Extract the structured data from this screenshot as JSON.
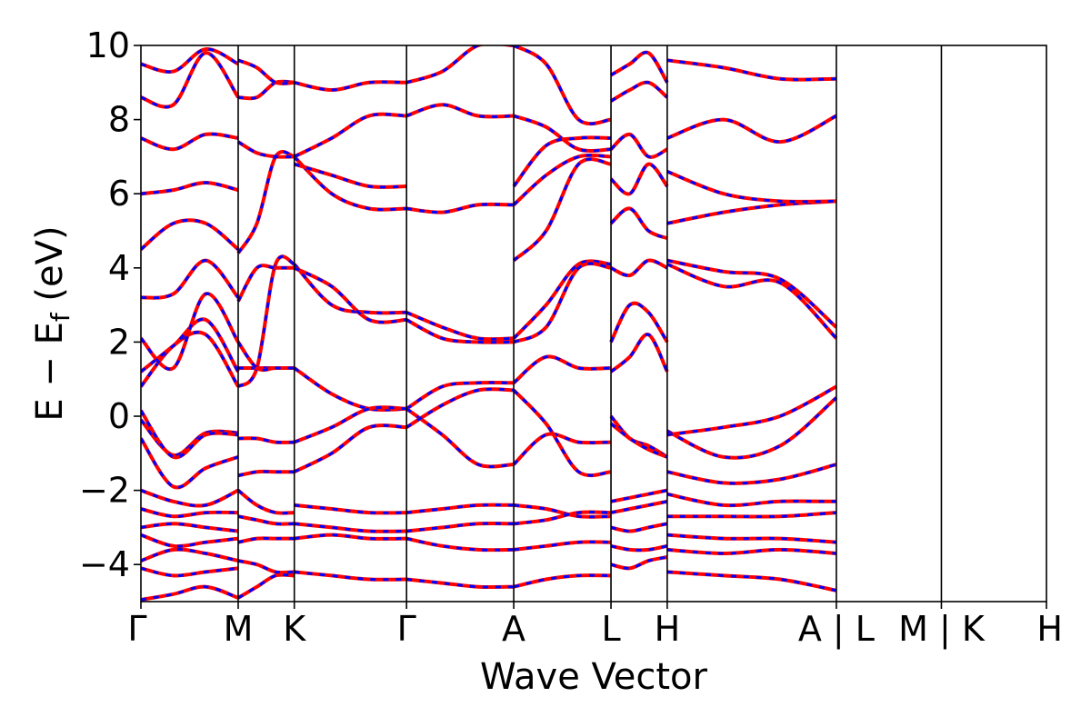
{
  "chart_data": {
    "type": "line",
    "xlabel": "Wave Vector",
    "ylabel": "E − E",
    "ylabel_sub": "f",
    "ylabel_unit": " (eV)",
    "ylim": [
      -5,
      10
    ],
    "yticks": [
      {
        "value": 10,
        "label": "10"
      },
      {
        "value": 8,
        "label": "8"
      },
      {
        "value": 6,
        "label": "6"
      },
      {
        "value": 4,
        "label": "4"
      },
      {
        "value": 2,
        "label": "2"
      },
      {
        "value": 0,
        "label": "0"
      },
      {
        "value": -2,
        "label": "−2"
      },
      {
        "value": -4,
        "label": "−4"
      }
    ],
    "k_path": [
      {
        "k": 0.0,
        "label": "Γ"
      },
      {
        "k": 1.0,
        "label": "M"
      },
      {
        "k": 1.577,
        "label": "K"
      },
      {
        "k": 2.731,
        "label": "Γ"
      },
      {
        "k": 3.833,
        "label": "A"
      },
      {
        "k": 4.833,
        "label": "L"
      },
      {
        "k": 5.411,
        "label": "H"
      },
      {
        "k": 7.15,
        "label": "A | L"
      },
      {
        "k": 8.23,
        "label": "M | K"
      },
      {
        "k": 9.31,
        "label": "H"
      }
    ],
    "series": [
      {
        "name": "",
        "color": "#ff0000",
        "style": "solid"
      },
      {
        "name": "",
        "color": "#0000ff",
        "style": "dashed"
      }
    ],
    "bands_segments": [
      [
        [
          -0.1,
          -1.05,
          -0.45,
          -0.45
        ],
        [
          0.15,
          -1.1,
          -0.5,
          -0.5
        ],
        [
          0.8,
          1.9,
          2.2,
          0.8
        ],
        [
          1.2,
          1.9,
          2.6,
          1.2
        ],
        [
          2.1,
          1.3,
          3.3,
          2.0
        ],
        [
          3.2,
          3.3,
          4.2,
          3.2
        ],
        [
          4.5,
          5.2,
          5.2,
          4.5
        ],
        [
          6.0,
          6.1,
          6.3,
          6.1
        ],
        [
          7.5,
          7.2,
          7.6,
          7.5
        ],
        [
          8.6,
          8.4,
          9.8,
          8.6
        ],
        [
          9.5,
          9.3,
          9.9,
          9.5
        ],
        [
          -0.6,
          -1.9,
          -1.4,
          -1.1
        ],
        [
          -2.0,
          -2.3,
          -2.4,
          -2.0
        ],
        [
          -2.5,
          -2.7,
          -2.6,
          -2.6
        ],
        [
          -3.0,
          -2.9,
          -3.0,
          -3.1
        ],
        [
          -3.2,
          -3.5,
          -3.4,
          -3.3
        ],
        [
          -3.9,
          -3.6,
          -3.7,
          -3.9
        ],
        [
          -4.1,
          -4.3,
          -4.2,
          -4.1
        ],
        [
          -4.95,
          -4.8,
          -4.6,
          -4.9
        ]
      ],
      [
        [
          0.8,
          1.3,
          4.1,
          4.1
        ],
        [
          1.3,
          1.3,
          1.3,
          1.3
        ],
        [
          3.1,
          4.0,
          4.0,
          4.0
        ],
        [
          4.4,
          5.2,
          7.0,
          7.0
        ],
        [
          7.4,
          7.1,
          7.0,
          7.0
        ],
        [
          8.6,
          8.6,
          9.0,
          9.0
        ],
        [
          -0.6,
          -0.6,
          -0.7,
          -0.7
        ],
        [
          -1.6,
          -1.5,
          -1.5,
          -1.5
        ],
        [
          -2.0,
          -2.4,
          -2.6,
          -2.6
        ],
        [
          -2.7,
          -2.8,
          -2.9,
          -2.9
        ],
        [
          -3.4,
          -3.3,
          -3.3,
          -3.3
        ],
        [
          -3.9,
          -4.0,
          -4.2,
          -4.2
        ],
        [
          -4.9,
          -4.6,
          -4.3,
          -4.3
        ],
        [
          2.0,
          1.3,
          1.3,
          1.3
        ],
        [
          9.6,
          9.4,
          9.0,
          9.0
        ]
      ],
      [
        [
          4.1,
          3.0,
          2.8,
          2.8
        ],
        [
          4.0,
          3.5,
          2.6,
          2.6
        ],
        [
          1.3,
          0.6,
          0.2,
          0.2
        ],
        [
          -0.7,
          -0.3,
          0.2,
          0.2
        ],
        [
          -1.5,
          -1.0,
          -0.3,
          -0.3
        ],
        [
          7.0,
          6.0,
          5.6,
          5.6
        ],
        [
          7.0,
          7.5,
          8.1,
          8.1
        ],
        [
          9.0,
          8.8,
          9.0,
          9.0
        ],
        [
          -2.4,
          -2.5,
          -2.6,
          -2.6
        ],
        [
          -2.9,
          -3.0,
          -3.1,
          -3.1
        ],
        [
          -3.3,
          -3.2,
          -3.3,
          -3.3
        ],
        [
          -4.2,
          -4.3,
          -4.4,
          -4.4
        ],
        [
          6.8,
          6.5,
          6.2,
          6.2
        ]
      ],
      [
        [
          2.8,
          2.4,
          2.1,
          2.1
        ],
        [
          2.6,
          2.1,
          2.0,
          2.0
        ],
        [
          0.2,
          0.8,
          0.9,
          0.9
        ],
        [
          0.2,
          -0.5,
          -1.3,
          -1.3
        ],
        [
          -0.3,
          0.3,
          0.7,
          0.7
        ],
        [
          5.6,
          5.5,
          5.7,
          5.7
        ],
        [
          8.1,
          8.4,
          8.1,
          8.1
        ],
        [
          9.0,
          9.3,
          10.0,
          10.0
        ],
        [
          -2.6,
          -2.5,
          -2.4,
          -2.4
        ],
        [
          -3.1,
          -3.0,
          -2.9,
          -2.9
        ],
        [
          -3.3,
          -3.5,
          -3.6,
          -3.6
        ],
        [
          -4.4,
          -4.5,
          -4.6,
          -4.6
        ]
      ],
      [
        [
          2.1,
          3.0,
          4.1,
          4.1
        ],
        [
          2.0,
          2.4,
          4.0,
          4.0
        ],
        [
          0.9,
          1.6,
          1.3,
          1.3
        ],
        [
          -1.3,
          -0.5,
          -0.7,
          -0.7
        ],
        [
          0.7,
          -0.2,
          -1.5,
          -1.5
        ],
        [
          5.7,
          6.5,
          7.0,
          7.0
        ],
        [
          8.1,
          7.8,
          7.2,
          7.2
        ],
        [
          10.0,
          9.5,
          8.0,
          8.0
        ],
        [
          4.2,
          5.0,
          6.8,
          6.8
        ],
        [
          -2.4,
          -2.5,
          -2.7,
          -2.7
        ],
        [
          -2.9,
          -2.8,
          -2.6,
          -2.6
        ],
        [
          -3.6,
          -3.5,
          -3.4,
          -3.4
        ],
        [
          -4.6,
          -4.4,
          -4.3,
          -4.3
        ],
        [
          6.2,
          7.3,
          7.5,
          7.5
        ]
      ],
      [
        [
          2.0,
          3.0,
          2.8,
          2.0
        ],
        [
          1.2,
          1.6,
          2.2,
          1.2
        ],
        [
          0.0,
          -0.6,
          -0.8,
          -1.1
        ],
        [
          -0.2,
          -0.6,
          -0.9,
          -1.1
        ],
        [
          4.0,
          3.8,
          4.2,
          4.0
        ],
        [
          5.2,
          5.6,
          5.0,
          4.8
        ],
        [
          6.4,
          6.0,
          6.8,
          6.2
        ],
        [
          7.2,
          7.6,
          7.0,
          7.2
        ],
        [
          8.5,
          8.8,
          9.0,
          8.6
        ],
        [
          9.2,
          9.5,
          9.8,
          9.0
        ],
        [
          -2.3,
          -2.2,
          -2.1,
          -2.0
        ],
        [
          -2.6,
          -2.5,
          -2.4,
          -2.3
        ],
        [
          -3.0,
          -3.1,
          -3.0,
          -2.9
        ],
        [
          -3.5,
          -3.6,
          -3.6,
          -3.5
        ],
        [
          -4.0,
          -4.1,
          -3.9,
          -3.8
        ]
      ],
      [
        [
          -0.4,
          -1.1,
          -0.8,
          0.5
        ],
        [
          -0.5,
          -0.3,
          0.0,
          0.8
        ],
        [
          4.1,
          3.5,
          3.6,
          2.1
        ],
        [
          4.2,
          3.9,
          3.7,
          2.4
        ],
        [
          5.2,
          5.5,
          5.7,
          5.8
        ],
        [
          6.6,
          6.0,
          5.8,
          5.8
        ],
        [
          7.5,
          8.0,
          7.4,
          8.1
        ],
        [
          9.6,
          9.4,
          9.1,
          9.1
        ],
        [
          -1.5,
          -1.8,
          -1.7,
          -1.3
        ],
        [
          -2.1,
          -2.4,
          -2.3,
          -2.3
        ],
        [
          -2.7,
          -2.7,
          -2.7,
          -2.6
        ],
        [
          -3.2,
          -3.3,
          -3.3,
          -3.4
        ],
        [
          -3.6,
          -3.7,
          -3.6,
          -3.7
        ],
        [
          -4.2,
          -4.3,
          -4.4,
          -4.7
        ]
      ]
    ]
  }
}
